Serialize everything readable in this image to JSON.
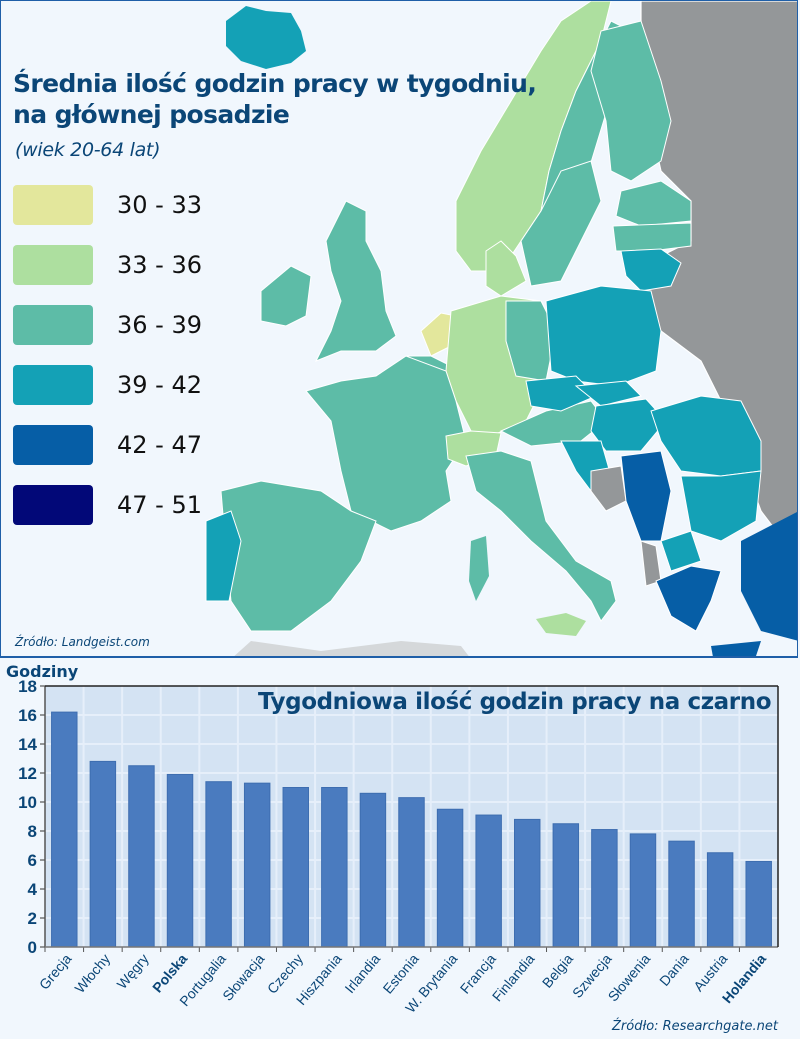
{
  "map": {
    "title_line1": "Średnia ilość godzin pracy w tygodniu,",
    "title_line2": "na głównej posadzie",
    "subtitle": "(wiek 20-64 lat)",
    "source": "Źródło: Landgeist.com",
    "legend": [
      {
        "label": "30 - 33",
        "color": "#e3e79c"
      },
      {
        "label": "33 - 36",
        "color": "#addf9f"
      },
      {
        "label": "36 - 39",
        "color": "#5dbca7"
      },
      {
        "label": "39 - 42",
        "color": "#14a1b6"
      },
      {
        "label": "42 - 47",
        "color": "#065ea6"
      },
      {
        "label": "47 - 51",
        "color": "#020878"
      }
    ],
    "no_data_color": "#949799"
  },
  "chart": {
    "title": "Tygodniowa ilość godzin pracy na czarno",
    "ylabel": "Godziny",
    "source": "Źródło: Researchgate.net"
  },
  "chart_data": {
    "type": "bar",
    "title": "Tygodniowa ilość godzin pracy na czarno",
    "xlabel": "",
    "ylabel": "Godziny",
    "ylim": [
      0,
      18
    ],
    "yticks": [
      0,
      2,
      4,
      6,
      8,
      10,
      12,
      14,
      16,
      18
    ],
    "grid": true,
    "bar_color": "#4a7bbf",
    "categories": [
      "Grecja",
      "Włochy",
      "Węgry",
      "Polska",
      "Portugalia",
      "Słowacja",
      "Czechy",
      "Hiszpania",
      "Irlandia",
      "Estonia",
      "W. Brytania",
      "Francja",
      "Finlandia",
      "Belgia",
      "Szwecja",
      "Słowenia",
      "Dania",
      "Austria",
      "Holandia"
    ],
    "values": [
      16.2,
      12.8,
      12.5,
      11.9,
      11.4,
      11.3,
      11.0,
      11.0,
      10.6,
      10.3,
      9.5,
      9.1,
      8.8,
      8.5,
      8.1,
      7.8,
      7.3,
      6.5,
      5.9
    ],
    "highlighted": [
      "Polska",
      "Holandia"
    ],
    "source": "Źródło: Researchgate.net"
  }
}
